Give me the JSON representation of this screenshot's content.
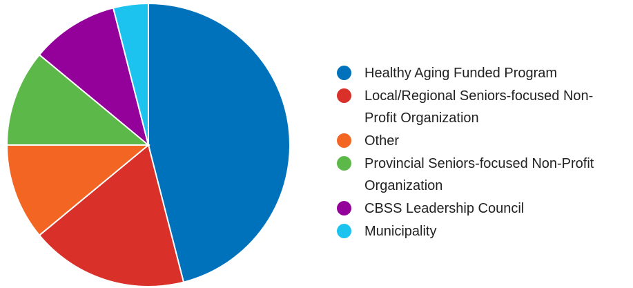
{
  "chart_data": {
    "type": "pie",
    "categories": [
      "Healthy Aging Funded Program",
      "Local/Regional Seniors-focused Non-Profit Organization",
      "Other",
      "Provincial Seniors-focused Non-Profit Organization",
      "CBSS Leadership Council",
      "Municipality"
    ],
    "values": [
      46,
      18,
      11,
      11,
      10,
      4
    ],
    "colors": [
      "#0072bc",
      "#d9302a",
      "#f26522",
      "#5cb848",
      "#93009a",
      "#1cc3ef"
    ],
    "legend": "right"
  }
}
